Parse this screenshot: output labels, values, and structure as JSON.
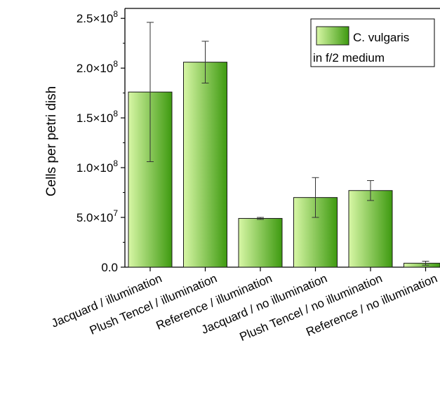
{
  "chart_data": {
    "type": "bar",
    "title": "",
    "xlabel": "",
    "ylabel": "Cells per petri dish",
    "ylim": [
      0,
      260000000
    ],
    "grid": false,
    "legend_position": "top-right",
    "categories": [
      "Jacquard / illumination",
      "Plush Tencel / illumination",
      "Reference / illumination",
      "Jacquard / no illumination",
      "Plush Tencel / no illumination",
      "Reference / no illumination"
    ],
    "series": [
      {
        "name": "C. vulgaris\nin f/2 medium",
        "values": [
          176000000,
          206000000,
          49000000,
          70000000,
          77000000,
          4000000
        ],
        "errors": [
          70000000,
          21000000,
          1000000,
          20000000,
          10000000,
          2000000
        ]
      }
    ],
    "yticks": [
      {
        "value": 0,
        "label": "0.0"
      },
      {
        "value": 50000000,
        "label": "5.0×10^7"
      },
      {
        "value": 100000000,
        "label": "1.0×10^8"
      },
      {
        "value": 150000000,
        "label": "1.5×10^8"
      },
      {
        "value": 200000000,
        "label": "2.0×10^8"
      },
      {
        "value": 250000000,
        "label": "2.5×10^8"
      }
    ],
    "legend": {
      "line1": "C. vulgaris",
      "line2": "in f/2 medium"
    },
    "colors": {
      "bar_light": "#d6f5a3",
      "bar_dark": "#3f9a12",
      "bar_edge": "#1a1a1a"
    }
  }
}
